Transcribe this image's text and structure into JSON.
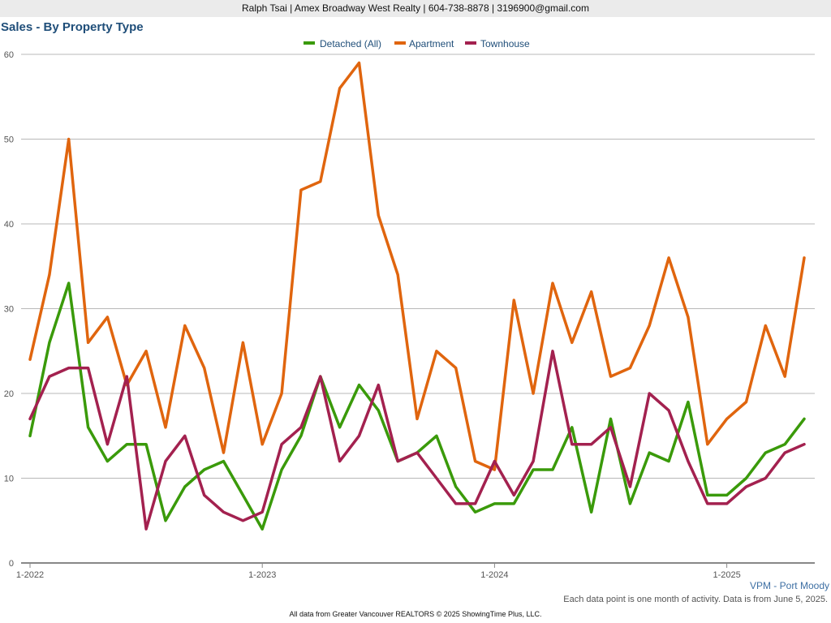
{
  "header": {
    "contact": "Ralph Tsai | Amex Broadway West Realty | 604-738-8878 | 3196900@gmail.com"
  },
  "chart_data": {
    "type": "line",
    "title": "Sales - By Property Type",
    "xlabel": "",
    "ylabel": "",
    "ylim": [
      0,
      60
    ],
    "yticks": [
      0,
      10,
      20,
      30,
      40,
      50,
      60
    ],
    "xtick_labels": [
      "1-2022",
      "1-2023",
      "1-2024",
      "1-2025"
    ],
    "x_start": "1-2022",
    "grid": true,
    "legend_position": "top-center",
    "series": [
      {
        "name": "Detached (All)",
        "color": "#3a9a0a",
        "values": [
          15,
          26,
          33,
          16,
          12,
          14,
          14,
          5,
          9,
          11,
          12,
          8,
          4,
          11,
          15,
          22,
          16,
          21,
          18,
          12,
          13,
          15,
          9,
          6,
          7,
          7,
          11,
          11,
          16,
          6,
          17,
          7,
          13,
          12,
          19,
          8,
          8,
          10,
          13,
          14,
          17
        ]
      },
      {
        "name": "Apartment",
        "color": "#e0650e",
        "values": [
          24,
          34,
          50,
          26,
          29,
          21,
          25,
          16,
          28,
          23,
          13,
          26,
          14,
          20,
          44,
          45,
          56,
          59,
          41,
          34,
          17,
          25,
          23,
          12,
          11,
          31,
          20,
          33,
          26,
          32,
          22,
          23,
          28,
          36,
          29,
          14,
          17,
          19,
          28,
          22,
          36
        ]
      },
      {
        "name": "Townhouse",
        "color": "#a3214f",
        "values": [
          17,
          22,
          23,
          23,
          14,
          22,
          4,
          12,
          15,
          8,
          6,
          5,
          6,
          14,
          16,
          22,
          12,
          15,
          21,
          12,
          13,
          10,
          7,
          7,
          12,
          8,
          12,
          25,
          14,
          14,
          16,
          9,
          20,
          18,
          12,
          7,
          7,
          9,
          10,
          13,
          14
        ]
      }
    ]
  },
  "footer": {
    "region": "VPM - Port Moody",
    "note": "Each data point is one month of activity. Data is from June 5, 2025.",
    "source": "All data from Greater Vancouver REALTORS © 2025 ShowingTime Plus, LLC."
  }
}
